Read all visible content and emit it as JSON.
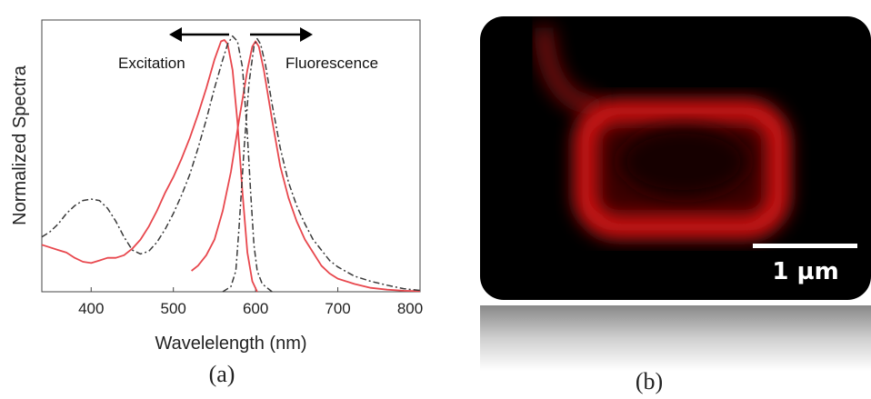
{
  "chart_data": {
    "type": "line",
    "xlabel": "Wavelelength (nm)",
    "ylabel": "Normalized Spectra",
    "xlim": [
      340,
      800
    ],
    "ylim": [
      0,
      1.0
    ],
    "xticks": [
      400,
      500,
      600,
      700,
      800
    ],
    "grid": false,
    "annotations": [
      {
        "text": "Excitation",
        "arrow": "left"
      },
      {
        "text": "Fluorescence",
        "arrow": "right"
      }
    ],
    "series": [
      {
        "color": "#e8474d",
        "dash": "solid",
        "points": [
          [
            340,
            0.18
          ],
          [
            350,
            0.17
          ],
          [
            360,
            0.16
          ],
          [
            370,
            0.15
          ],
          [
            380,
            0.13
          ],
          [
            390,
            0.115
          ],
          [
            400,
            0.11
          ],
          [
            410,
            0.12
          ],
          [
            420,
            0.13
          ],
          [
            430,
            0.13
          ],
          [
            440,
            0.14
          ],
          [
            450,
            0.165
          ],
          [
            460,
            0.2
          ],
          [
            470,
            0.25
          ],
          [
            480,
            0.31
          ],
          [
            490,
            0.38
          ],
          [
            500,
            0.44
          ],
          [
            510,
            0.51
          ],
          [
            520,
            0.59
          ],
          [
            530,
            0.68
          ],
          [
            540,
            0.78
          ],
          [
            550,
            0.89
          ],
          [
            558,
            0.96
          ],
          [
            562,
            0.965
          ],
          [
            566,
            0.95
          ],
          [
            572,
            0.85
          ],
          [
            578,
            0.65
          ],
          [
            584,
            0.38
          ],
          [
            590,
            0.15
          ],
          [
            596,
            0.04
          ],
          [
            602,
            0.0
          ]
        ]
      },
      {
        "color": "#e8474d",
        "dash": "solid",
        "points": [
          [
            522,
            0.08
          ],
          [
            530,
            0.1
          ],
          [
            540,
            0.14
          ],
          [
            550,
            0.2
          ],
          [
            560,
            0.31
          ],
          [
            570,
            0.46
          ],
          [
            580,
            0.66
          ],
          [
            590,
            0.85
          ],
          [
            596,
            0.94
          ],
          [
            600,
            0.96
          ],
          [
            604,
            0.94
          ],
          [
            610,
            0.85
          ],
          [
            620,
            0.66
          ],
          [
            630,
            0.48
          ],
          [
            640,
            0.36
          ],
          [
            650,
            0.27
          ],
          [
            660,
            0.2
          ],
          [
            670,
            0.15
          ],
          [
            680,
            0.1
          ],
          [
            690,
            0.07
          ],
          [
            700,
            0.05
          ],
          [
            720,
            0.03
          ],
          [
            740,
            0.015
          ],
          [
            760,
            0.008
          ],
          [
            780,
            0.004
          ],
          [
            800,
            0.002
          ]
        ]
      },
      {
        "color": "#3a3a3a",
        "dash": "dashdot",
        "points": [
          [
            340,
            0.21
          ],
          [
            350,
            0.23
          ],
          [
            360,
            0.26
          ],
          [
            370,
            0.3
          ],
          [
            380,
            0.33
          ],
          [
            390,
            0.35
          ],
          [
            400,
            0.355
          ],
          [
            410,
            0.35
          ],
          [
            420,
            0.32
          ],
          [
            430,
            0.27
          ],
          [
            440,
            0.21
          ],
          [
            450,
            0.16
          ],
          [
            460,
            0.145
          ],
          [
            470,
            0.155
          ],
          [
            480,
            0.19
          ],
          [
            490,
            0.24
          ],
          [
            500,
            0.3
          ],
          [
            510,
            0.37
          ],
          [
            520,
            0.45
          ],
          [
            530,
            0.55
          ],
          [
            540,
            0.66
          ],
          [
            550,
            0.78
          ],
          [
            560,
            0.89
          ],
          [
            566,
            0.95
          ],
          [
            572,
            0.98
          ],
          [
            578,
            0.96
          ],
          [
            584,
            0.86
          ],
          [
            590,
            0.6
          ],
          [
            594,
            0.38
          ],
          [
            598,
            0.18
          ],
          [
            602,
            0.08
          ],
          [
            608,
            0.03
          ],
          [
            616,
            0.01
          ],
          [
            620,
            0.0
          ]
        ]
      },
      {
        "color": "#3a3a3a",
        "dash": "dashdot",
        "points": [
          [
            560,
            0.0
          ],
          [
            570,
            0.02
          ],
          [
            576,
            0.08
          ],
          [
            580,
            0.25
          ],
          [
            586,
            0.55
          ],
          [
            592,
            0.8
          ],
          [
            598,
            0.94
          ],
          [
            602,
            0.97
          ],
          [
            606,
            0.95
          ],
          [
            612,
            0.87
          ],
          [
            620,
            0.72
          ],
          [
            630,
            0.55
          ],
          [
            640,
            0.42
          ],
          [
            650,
            0.33
          ],
          [
            660,
            0.26
          ],
          [
            670,
            0.2
          ],
          [
            680,
            0.16
          ],
          [
            690,
            0.12
          ],
          [
            700,
            0.095
          ],
          [
            720,
            0.06
          ],
          [
            740,
            0.04
          ],
          [
            760,
            0.025
          ],
          [
            780,
            0.012
          ],
          [
            800,
            0.005
          ]
        ]
      }
    ]
  },
  "panel_a": {
    "label": "(a)"
  },
  "panel_b": {
    "label": "(b)",
    "scale_bar_text": "1 µm"
  }
}
